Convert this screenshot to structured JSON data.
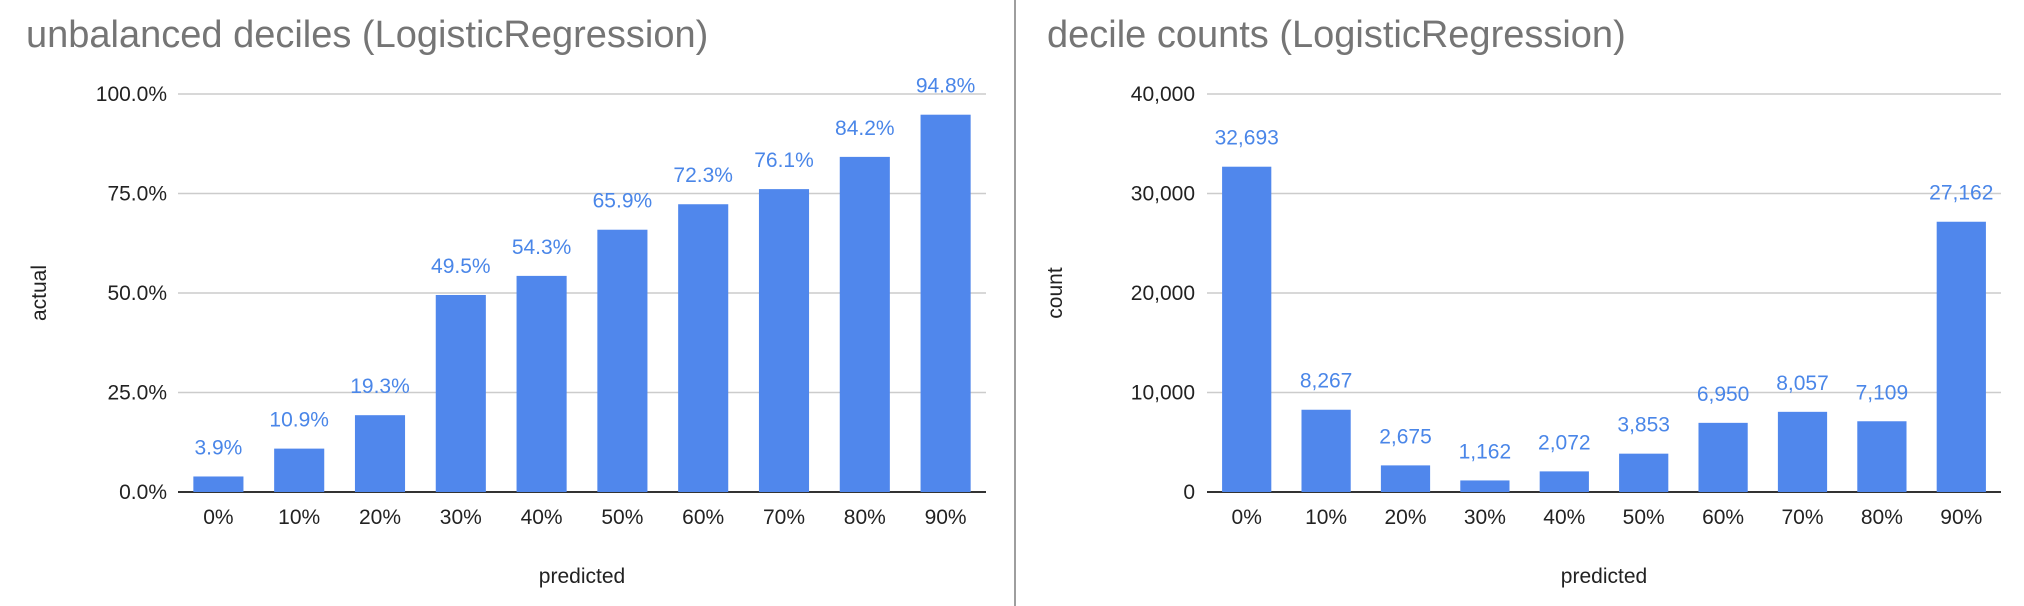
{
  "chart_data": [
    {
      "type": "bar",
      "title": "unbalanced deciles (LogisticRegression)",
      "xlabel": "predicted",
      "ylabel": "actual",
      "categories": [
        "0%",
        "10%",
        "20%",
        "30%",
        "40%",
        "50%",
        "60%",
        "70%",
        "80%",
        "90%"
      ],
      "values": [
        3.9,
        10.9,
        19.3,
        49.5,
        54.3,
        65.9,
        72.3,
        76.1,
        84.2,
        94.8
      ],
      "data_labels": [
        "3.9%",
        "10.9%",
        "19.3%",
        "49.5%",
        "54.3%",
        "65.9%",
        "72.3%",
        "76.1%",
        "84.2%",
        "94.8%"
      ],
      "ylim": [
        0,
        100
      ],
      "yticks": [
        0,
        25,
        50,
        75,
        100
      ],
      "ytick_labels": [
        "0.0%",
        "25.0%",
        "50.0%",
        "75.0%",
        "100.0%"
      ],
      "grid": true,
      "legend": "none",
      "color": "#5087EC",
      "label_color": "#4A86E8"
    },
    {
      "type": "bar",
      "title": "decile counts (LogisticRegression)",
      "xlabel": "predicted",
      "ylabel": "count",
      "categories": [
        "0%",
        "10%",
        "20%",
        "30%",
        "40%",
        "50%",
        "60%",
        "70%",
        "80%",
        "90%"
      ],
      "values": [
        32693,
        8267,
        2675,
        1162,
        2072,
        3853,
        6950,
        8057,
        7109,
        27162
      ],
      "data_labels": [
        "32,693",
        "8,267",
        "2,675",
        "1,162",
        "2,072",
        "3,853",
        "6,950",
        "8,057",
        "7,109",
        "27,162"
      ],
      "ylim": [
        0,
        40000
      ],
      "yticks": [
        0,
        10000,
        20000,
        30000,
        40000
      ],
      "ytick_labels": [
        "0",
        "10,000",
        "20,000",
        "30,000",
        "40,000"
      ],
      "grid": true,
      "legend": "none",
      "color": "#5087EC",
      "label_color": "#4A86E8"
    }
  ]
}
